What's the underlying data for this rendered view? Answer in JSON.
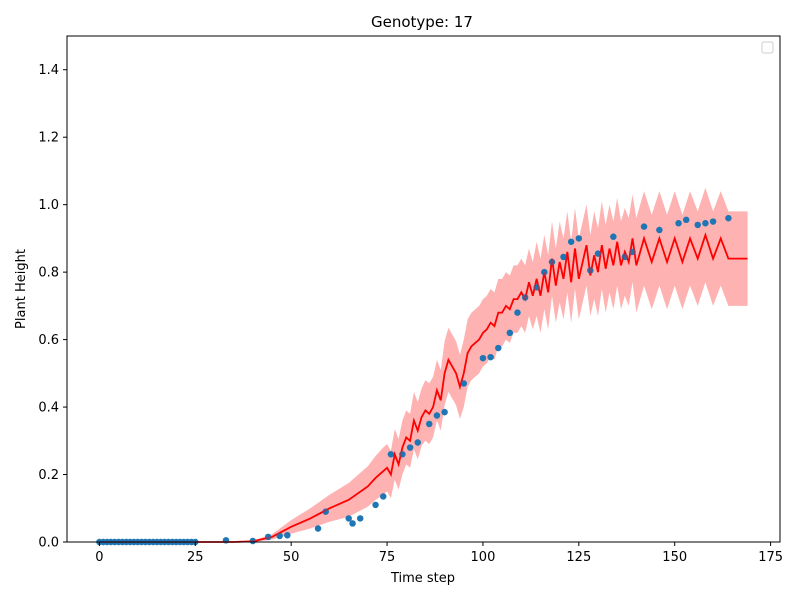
{
  "chart_data": {
    "type": "line",
    "title": "Genotype: 17",
    "xlabel": "Time step",
    "ylabel": "Plant Height",
    "xlim": [
      -8.45,
      177.45
    ],
    "ylim": [
      0,
      1.5
    ],
    "xticks": [
      0,
      25,
      50,
      75,
      100,
      125,
      150,
      175
    ],
    "yticks": [
      0.0,
      0.2,
      0.4,
      0.6,
      0.8,
      1.0,
      1.2,
      1.4
    ],
    "grid": false,
    "legend_placement": "top-right",
    "legend_entries": [],
    "colors": {
      "prediction": "#ff0000",
      "band": "#ff0000",
      "observed": "#1f77b4"
    },
    "series": [
      {
        "kind": "observed_points",
        "x": [
          0,
          1,
          2,
          3,
          4,
          5,
          6,
          7,
          8,
          9,
          10,
          11,
          12,
          13,
          14,
          15,
          16,
          17,
          18,
          19,
          20,
          21,
          22,
          23,
          24,
          25,
          33,
          40,
          44,
          47,
          49,
          57,
          59,
          65,
          66,
          68,
          72,
          74,
          76,
          79,
          81,
          83,
          86,
          88,
          90,
          95,
          100,
          102,
          104,
          107,
          109,
          111,
          114,
          116,
          118,
          121,
          123,
          125,
          128,
          130,
          134,
          137,
          139,
          142,
          146,
          151,
          153,
          156,
          158,
          160,
          164
        ],
        "y": [
          0,
          0,
          0,
          0,
          0,
          0,
          0,
          0,
          0,
          0,
          0,
          0,
          0,
          0,
          0,
          0,
          0,
          0,
          0,
          0,
          0,
          0,
          0,
          0,
          0,
          0,
          0.005,
          0.003,
          0.015,
          0.018,
          0.02,
          0.04,
          0.09,
          0.07,
          0.055,
          0.07,
          0.11,
          0.135,
          0.26,
          0.26,
          0.28,
          0.295,
          0.35,
          0.375,
          0.385,
          0.47,
          0.545,
          0.548,
          0.575,
          0.62,
          0.68,
          0.725,
          0.755,
          0.8,
          0.83,
          0.845,
          0.89,
          0.9,
          0.805,
          0.855,
          0.905,
          0.845,
          0.86,
          0.935,
          0.925,
          0.945,
          0.955,
          0.94,
          0.945,
          0.95,
          0.96
        ]
      },
      {
        "kind": "prediction_mean",
        "x": [
          0,
          5,
          10,
          15,
          20,
          25,
          30,
          35,
          40,
          45,
          50,
          55,
          60,
          65,
          70,
          72,
          74,
          75,
          76,
          77,
          78,
          79,
          80,
          81,
          82,
          83,
          84,
          85,
          86,
          87,
          88,
          89,
          90,
          91,
          92,
          93,
          94,
          95,
          96,
          97,
          98,
          99,
          100,
          101,
          102,
          103,
          104,
          105,
          106,
          107,
          108,
          109,
          110,
          111,
          112,
          113,
          114,
          115,
          116,
          117,
          118,
          119,
          120,
          121,
          122,
          123,
          124,
          125,
          126,
          127,
          128,
          129,
          130,
          131,
          132,
          133,
          134,
          135,
          136,
          137,
          138,
          139,
          140,
          142,
          144,
          146,
          148,
          150,
          152,
          154,
          156,
          158,
          160,
          162,
          164,
          166,
          169
        ],
        "y": [
          0,
          0,
          0,
          0,
          0,
          0,
          0,
          0,
          0.002,
          0.015,
          0.045,
          0.07,
          0.1,
          0.125,
          0.165,
          0.19,
          0.21,
          0.22,
          0.2,
          0.26,
          0.23,
          0.28,
          0.31,
          0.3,
          0.36,
          0.33,
          0.37,
          0.39,
          0.38,
          0.4,
          0.45,
          0.42,
          0.5,
          0.54,
          0.52,
          0.5,
          0.46,
          0.5,
          0.56,
          0.58,
          0.59,
          0.6,
          0.62,
          0.63,
          0.65,
          0.64,
          0.68,
          0.68,
          0.7,
          0.69,
          0.72,
          0.72,
          0.74,
          0.72,
          0.77,
          0.73,
          0.78,
          0.73,
          0.8,
          0.74,
          0.84,
          0.76,
          0.83,
          0.78,
          0.86,
          0.77,
          0.87,
          0.78,
          0.83,
          0.88,
          0.79,
          0.85,
          0.8,
          0.88,
          0.81,
          0.87,
          0.82,
          0.89,
          0.82,
          0.86,
          0.83,
          0.9,
          0.82,
          0.9,
          0.83,
          0.9,
          0.83,
          0.9,
          0.83,
          0.9,
          0.84,
          0.91,
          0.84,
          0.9,
          0.84,
          0.84,
          0.84
        ]
      }
    ],
    "band_halfwidth": [
      0,
      0,
      0,
      0,
      0,
      0,
      0,
      0,
      0.002,
      0.008,
      0.02,
      0.03,
      0.04,
      0.05,
      0.06,
      0.065,
      0.07,
      0.07,
      0.07,
      0.075,
      0.075,
      0.08,
      0.08,
      0.08,
      0.085,
      0.085,
      0.085,
      0.09,
      0.09,
      0.09,
      0.09,
      0.09,
      0.095,
      0.095,
      0.095,
      0.095,
      0.095,
      0.1,
      0.1,
      0.1,
      0.1,
      0.1,
      0.1,
      0.1,
      0.1,
      0.1,
      0.1,
      0.1,
      0.1,
      0.1,
      0.1,
      0.1,
      0.1,
      0.1,
      0.1,
      0.1,
      0.11,
      0.11,
      0.11,
      0.11,
      0.11,
      0.11,
      0.12,
      0.12,
      0.12,
      0.12,
      0.12,
      0.12,
      0.12,
      0.12,
      0.12,
      0.13,
      0.13,
      0.13,
      0.13,
      0.13,
      0.13,
      0.13,
      0.13,
      0.13,
      0.13,
      0.13,
      0.14,
      0.14,
      0.14,
      0.14,
      0.14,
      0.14,
      0.14,
      0.14,
      0.14,
      0.14,
      0.14,
      0.14,
      0.14,
      0.14,
      0.14
    ]
  }
}
